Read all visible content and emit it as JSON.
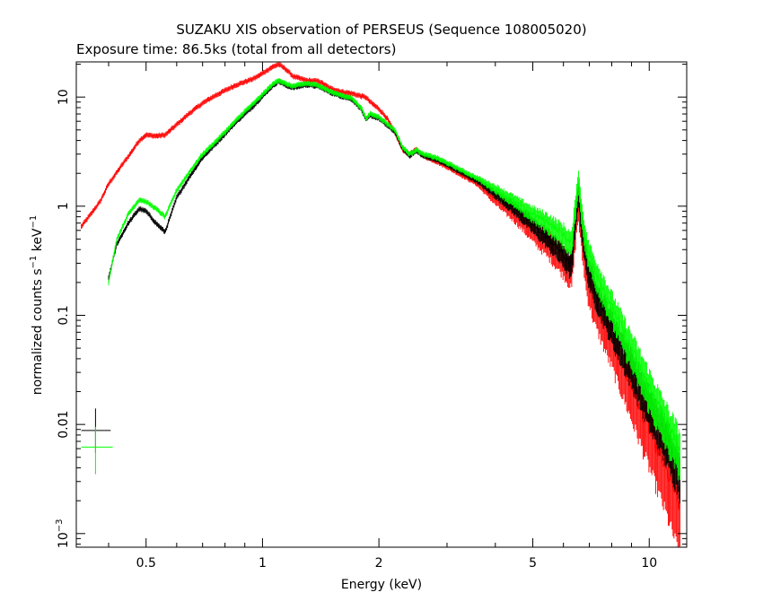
{
  "chart_data": {
    "type": "line",
    "title": "SUZAKU XIS observation of PERSEUS (Sequence 108005020)",
    "subtitle": "Exposure time: 86.5ks (total from all detectors)",
    "xlabel": "Energy (keV)",
    "ylabel": "normalized counts s",
    "ylabel_sup1": "−1",
    "ylabel_mid": " keV",
    "ylabel_sup2": "−1",
    "xscale": "log",
    "yscale": "log",
    "xlim": [
      0.33,
      12.5
    ],
    "ylim": [
      0.00075,
      21
    ],
    "grid": false,
    "legend": "none",
    "x_ticks": [
      {
        "value": 0.5,
        "label": "0.5"
      },
      {
        "value": 1,
        "label": "1"
      },
      {
        "value": 2,
        "label": "2"
      },
      {
        "value": 5,
        "label": "5"
      },
      {
        "value": 10,
        "label": "10"
      }
    ],
    "y_ticks": [
      {
        "value": 0.001,
        "label_base": "10",
        "label_exp": "−3"
      },
      {
        "value": 0.01,
        "label": "0.01"
      },
      {
        "value": 0.1,
        "label": "0.1"
      },
      {
        "value": 1,
        "label": "1"
      },
      {
        "value": 10,
        "label": "10"
      }
    ],
    "series": [
      {
        "color": "#ff0000",
        "x": [
          0.34,
          0.36,
          0.38,
          0.4,
          0.43,
          0.46,
          0.48,
          0.5,
          0.53,
          0.56,
          0.6,
          0.65,
          0.7,
          0.75,
          0.8,
          0.85,
          0.9,
          0.95,
          1.0,
          1.05,
          1.1,
          1.15,
          1.2,
          1.3,
          1.4,
          1.5,
          1.6,
          1.7,
          1.8,
          1.85,
          1.9,
          2.0,
          2.1,
          2.2,
          2.3,
          2.4,
          2.5,
          2.6,
          2.8,
          3.0,
          3.3,
          3.6,
          4.0,
          4.5,
          5.0,
          5.5,
          6.0,
          6.3,
          6.55,
          6.7,
          6.9,
          7.2,
          7.6,
          8.0,
          9.0,
          10.0,
          11.0,
          12.0
        ],
        "y": [
          0.65,
          0.85,
          1.1,
          1.6,
          2.3,
          3.2,
          4.0,
          4.5,
          4.4,
          4.5,
          5.6,
          7.2,
          8.8,
          10.2,
          11.5,
          12.8,
          13.8,
          14.8,
          16.5,
          18.5,
          20.0,
          18.0,
          15.5,
          14.2,
          14.0,
          12.0,
          11.2,
          10.8,
          10.2,
          10.0,
          9.0,
          7.8,
          6.4,
          4.7,
          3.3,
          3.0,
          3.3,
          2.9,
          2.6,
          2.3,
          1.9,
          1.6,
          1.15,
          0.85,
          0.6,
          0.45,
          0.33,
          0.26,
          1.2,
          0.55,
          0.24,
          0.14,
          0.09,
          0.06,
          0.022,
          0.009,
          0.004,
          0.0018
        ]
      },
      {
        "color": "#000000",
        "x": [
          0.4,
          0.42,
          0.45,
          0.48,
          0.5,
          0.53,
          0.56,
          0.6,
          0.65,
          0.7,
          0.75,
          0.8,
          0.85,
          0.9,
          0.95,
          1.0,
          1.05,
          1.1,
          1.15,
          1.2,
          1.3,
          1.4,
          1.5,
          1.6,
          1.7,
          1.8,
          1.85,
          1.9,
          2.0,
          2.1,
          2.2,
          2.3,
          2.4,
          2.5,
          2.6,
          2.8,
          3.0,
          3.3,
          3.6,
          4.0,
          4.5,
          5.0,
          5.5,
          6.0,
          6.3,
          6.55,
          6.7,
          6.9,
          7.2,
          7.6,
          8.0,
          9.0,
          10.0,
          11.0,
          12.0
        ],
        "y": [
          0.22,
          0.45,
          0.7,
          0.95,
          0.9,
          0.7,
          0.58,
          1.2,
          1.9,
          2.8,
          3.6,
          4.6,
          5.8,
          7.0,
          8.4,
          10.2,
          12.2,
          14.0,
          12.8,
          12.2,
          13.0,
          12.5,
          11.0,
          10.2,
          9.6,
          7.8,
          6.2,
          6.8,
          6.4,
          5.5,
          4.8,
          3.4,
          2.9,
          3.2,
          2.9,
          2.7,
          2.4,
          2.0,
          1.7,
          1.3,
          0.95,
          0.68,
          0.5,
          0.36,
          0.28,
          1.45,
          0.65,
          0.3,
          0.18,
          0.12,
          0.08,
          0.035,
          0.015,
          0.008,
          0.004
        ]
      },
      {
        "color": "#00ff00",
        "x": [
          0.4,
          0.42,
          0.45,
          0.48,
          0.5,
          0.53,
          0.56,
          0.6,
          0.65,
          0.7,
          0.75,
          0.8,
          0.85,
          0.9,
          0.95,
          1.0,
          1.05,
          1.1,
          1.15,
          1.2,
          1.3,
          1.4,
          1.5,
          1.6,
          1.7,
          1.8,
          1.85,
          1.9,
          2.0,
          2.1,
          2.2,
          2.3,
          2.4,
          2.5,
          2.6,
          2.8,
          3.0,
          3.3,
          3.6,
          4.0,
          4.5,
          5.0,
          5.5,
          6.0,
          6.3,
          6.55,
          6.7,
          6.9,
          7.2,
          7.6,
          8.0,
          9.0,
          10.0,
          11.0,
          12.0
        ],
        "y": [
          0.2,
          0.5,
          0.85,
          1.15,
          1.1,
          0.95,
          0.8,
          1.4,
          2.1,
          3.0,
          3.8,
          4.8,
          6.0,
          7.4,
          8.8,
          10.6,
          12.6,
          14.4,
          13.2,
          12.6,
          13.4,
          12.8,
          11.2,
          10.4,
          9.8,
          8.0,
          6.4,
          7.0,
          6.6,
          5.7,
          5.0,
          3.5,
          3.0,
          3.3,
          3.0,
          2.8,
          2.5,
          2.1,
          1.8,
          1.45,
          1.1,
          0.85,
          0.7,
          0.55,
          0.45,
          1.8,
          0.85,
          0.42,
          0.27,
          0.18,
          0.12,
          0.05,
          0.022,
          0.011,
          0.006
        ]
      }
    ],
    "error_bar_legend": [
      {
        "color": "#000000",
        "x": 0.37,
        "y": 0.0088,
        "x_err": [
          0.34,
          0.405
        ],
        "y_err": [
          0.0055,
          0.014
        ]
      },
      {
        "color": "#00ff00",
        "x": 0.37,
        "y": 0.0062,
        "x_err": [
          0.34,
          0.41
        ],
        "y_err": [
          0.0035,
          0.0095
        ]
      }
    ]
  }
}
